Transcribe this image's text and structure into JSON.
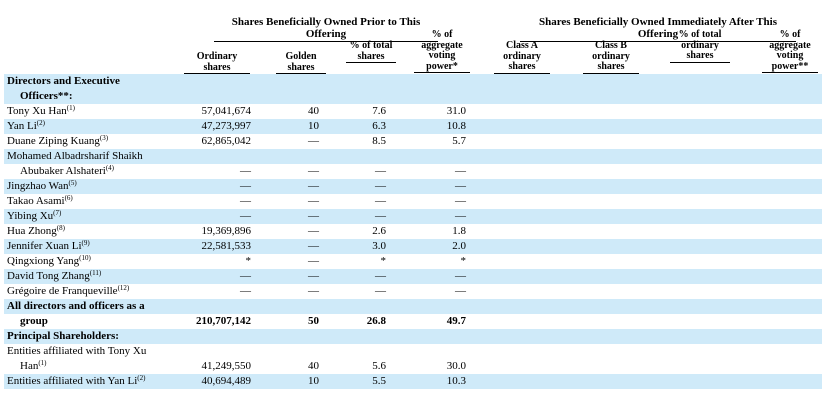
{
  "group_headers": {
    "prior": "Shares Beneficially Owned Prior to This Offering",
    "after": "Shares Beneficially Owned Immediately After This Offering"
  },
  "columns_prior": {
    "ordinary": "Ordinary shares",
    "golden": "Golden shares",
    "pct_total": "% of total shares",
    "pct_voting": "% of aggregate voting power*"
  },
  "columns_after": {
    "class_a": "Class A ordinary shares",
    "class_b": "Class B ordinary shares",
    "pct_total": "% of total ordinary shares",
    "pct_voting": "% of aggregate voting power**"
  },
  "rows": [
    {
      "name": "Directors and Executive",
      "bold": true,
      "shaded": true
    },
    {
      "name": "Officers**:",
      "indent": true,
      "bold": true,
      "shaded": true
    },
    {
      "name": "Tony Xu Han",
      "note": "(1)",
      "ordinary": "57,041,674",
      "golden": "40",
      "pct": "7.6",
      "vote": "31.0",
      "shaded": false
    },
    {
      "name": "Yan Li",
      "note": "(2)",
      "ordinary": "47,273,997",
      "golden": "10",
      "pct": "6.3",
      "vote": "10.8",
      "shaded": true
    },
    {
      "name": "Duane Ziping Kuang",
      "note": "(3)",
      "ordinary": "62,865,042",
      "golden": "—",
      "pct": "8.5",
      "vote": "5.7",
      "shaded": false
    },
    {
      "name": "Mohamed Albadrsharif Shaikh",
      "shaded": true
    },
    {
      "name": "Abubaker Alshateri",
      "note": "(4)",
      "indent": true,
      "ordinary": "—",
      "golden": "—",
      "pct": "—",
      "vote": "—",
      "shaded": false
    },
    {
      "name": "Jingzhao Wan",
      "note": "(5)",
      "ordinary": "—",
      "golden": "—",
      "pct": "—",
      "vote": "—",
      "shaded": true
    },
    {
      "name": "Takao Asami",
      "note": "(6)",
      "ordinary": "—",
      "golden": "—",
      "pct": "—",
      "vote": "—",
      "shaded": false
    },
    {
      "name": "Yibing Xu",
      "note": "(7)",
      "ordinary": "—",
      "golden": "—",
      "pct": "—",
      "vote": "—",
      "shaded": true
    },
    {
      "name": "Hua Zhong",
      "note": "(8)",
      "ordinary": "19,369,896",
      "golden": "—",
      "pct": "2.6",
      "vote": "1.8",
      "shaded": false
    },
    {
      "name": "Jennifer Xuan Li",
      "note": "(9)",
      "ordinary": "22,581,533",
      "golden": "—",
      "pct": "3.0",
      "vote": "2.0",
      "shaded": true
    },
    {
      "name": "Qingxiong Yang",
      "note": "(10)",
      "ordinary": "*",
      "golden": "—",
      "pct": "*",
      "vote": "*",
      "shaded": false
    },
    {
      "name": "David Tong Zhang",
      "note": "(11)",
      "ordinary": "—",
      "golden": "—",
      "pct": "—",
      "vote": "—",
      "shaded": true
    },
    {
      "name": "Grégoire de Franqueville",
      "note": "(12)",
      "ordinary": "—",
      "golden": "—",
      "pct": "—",
      "vote": "—",
      "shaded": false
    },
    {
      "name": "All directors and officers as a",
      "bold": true,
      "shaded": true
    },
    {
      "name": "group",
      "indent": true,
      "bold": true,
      "ordinary": "210,707,142",
      "golden": "50",
      "pct": "26.8",
      "vote": "49.7",
      "shaded": false
    },
    {
      "name": "Principal Shareholders:",
      "bold": true,
      "shaded": true
    },
    {
      "name": "Entities affiliated with Tony Xu",
      "shaded": false
    },
    {
      "name": "Han",
      "note": "(1)",
      "indent": true,
      "ordinary": "41,249,550",
      "golden": "40",
      "pct": "5.6",
      "vote": "30.0",
      "shaded": false
    },
    {
      "name": "Entities affiliated with Yan Li",
      "note": "(2)",
      "ordinary": "40,694,489",
      "golden": "10",
      "pct": "5.5",
      "vote": "10.3",
      "shaded": true
    }
  ]
}
